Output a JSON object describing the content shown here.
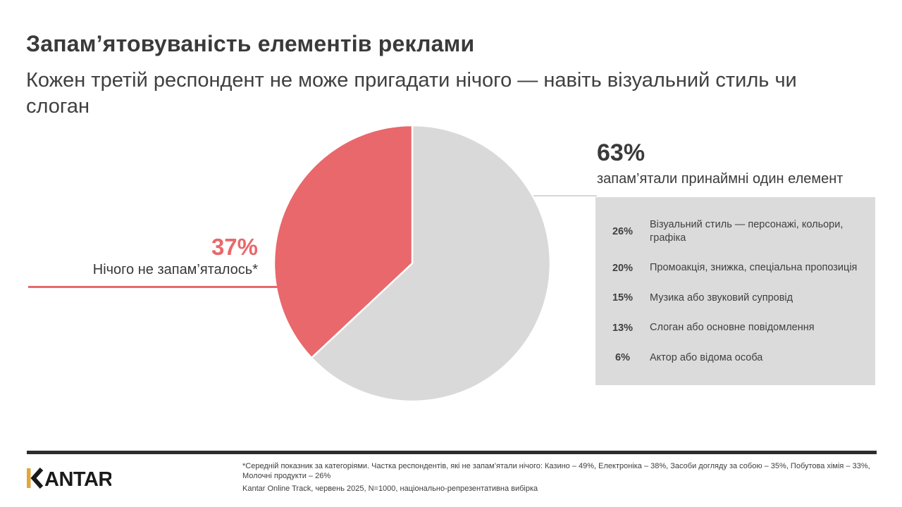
{
  "colors": {
    "accent_red": "#E8686B",
    "pie_gray": "#D9D9D9",
    "box_gray": "#DBDBDB",
    "text_dark": "#3A3A3A",
    "divider_dark": "#2D2D2D",
    "leader_gray": "#D6D6D6",
    "logo_gold": "#E2A63D"
  },
  "header": {
    "title": "Запам’ятовуваність елементів реклами",
    "subtitle": "Кожен третій респондент не може пригадати нічого — навіть візуальний стиль чи слоган"
  },
  "chart_data": {
    "type": "pie",
    "title": "Запам’ятовуваність елементів реклами",
    "start_angle_deg": 0,
    "direction": "clockwise",
    "slices": [
      {
        "label": "запам’ятали принаймні один елемент",
        "value": 63,
        "color": "#D9D9D9"
      },
      {
        "label": "Нічого не запам’яталось*",
        "value": 37,
        "color": "#E8686B"
      }
    ],
    "breakdown": [
      {
        "percent": "26%",
        "label": "Візуальний стиль — персонажі, кольори, графіка"
      },
      {
        "percent": "20%",
        "label": "Промоакція, знижка, спеціальна пропозиція"
      },
      {
        "percent": "15%",
        "label": "Музика або звуковий супровід"
      },
      {
        "percent": "13%",
        "label": "Слоган або основне повідомлення"
      },
      {
        "percent": "6%",
        "label": "Актор або відома особа"
      }
    ]
  },
  "left_callout": {
    "value": "37%",
    "label": "Нічого не запам’яталось*"
  },
  "right_callout": {
    "value": "63%",
    "label": "запам’ятали принаймні один елемент"
  },
  "footer": {
    "logo_text": "KANTAR",
    "footnote_line1": "*Середній показник за категоріями. Частка респондентів, які не запам’ятали нічого: Казино – 49%, Електроніка – 38%, Засоби догляду за собою – 35%, Побутова хімія – 33%,",
    "footnote_line2": "Молочні продукти – 26%",
    "footnote_line3": "Kantar Online Track, червень 2025, N=1000, національно-репрезентативна вибірка"
  }
}
